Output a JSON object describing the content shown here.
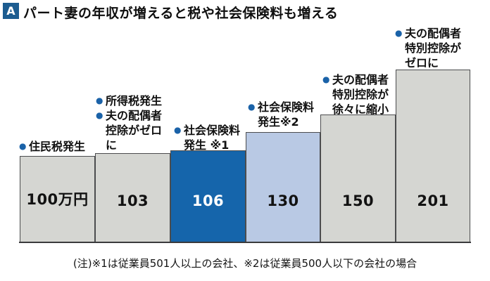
{
  "ui": {
    "bullet": "●"
  },
  "title": {
    "badge": "A",
    "text": "パート妻の年収が増えると税や社会保険料も増える"
  },
  "note": "(注)※1は従業員501人以上の会社、※2は従業員500人以下の会社の場合",
  "colors": {
    "badge_blue": "#1c5c90",
    "dark_blue_bar": "#1565ab",
    "light_blue_bar": "#b9c9e4",
    "gray_bar": "#d5d6d2",
    "bullet_blue": "#1a62a8",
    "bar_border": "#4b4c4e"
  },
  "chart_data": {
    "type": "bar",
    "title": "パート妻の年収が増えると税や社会保険料も増える",
    "xlabel": "",
    "ylabel": "",
    "ylim": [
      0,
      210
    ],
    "grid": false,
    "legend": false,
    "categories": [
      "100万円",
      "103",
      "106",
      "130",
      "150",
      "201"
    ],
    "values": [
      100,
      103,
      106,
      130,
      150,
      201
    ],
    "bars": [
      {
        "label": "100万円",
        "value": 100,
        "color": "#d5d6d2",
        "annotations": [
          "住民税発生"
        ]
      },
      {
        "label": "103",
        "value": 103,
        "color": "#d5d6d2",
        "annotations": [
          "所得税発生",
          "夫の配偶者\n控除がゼロ\nに"
        ]
      },
      {
        "label": "106",
        "value": 106,
        "color": "#1565ab",
        "annotations": [
          "社会保険料\n発生 ※1"
        ]
      },
      {
        "label": "130",
        "value": 130,
        "color": "#b9c9e4",
        "annotations": [
          "社会保険料\n発生※2"
        ]
      },
      {
        "label": "150",
        "value": 150,
        "color": "#d5d6d2",
        "annotations": [
          "夫の配偶者\n特別控除が\n徐々に縮小"
        ]
      },
      {
        "label": "201",
        "value": 201,
        "color": "#d5d6d2",
        "annotations": [
          "夫の配偶者\n特別控除が\nゼロに"
        ]
      }
    ]
  }
}
